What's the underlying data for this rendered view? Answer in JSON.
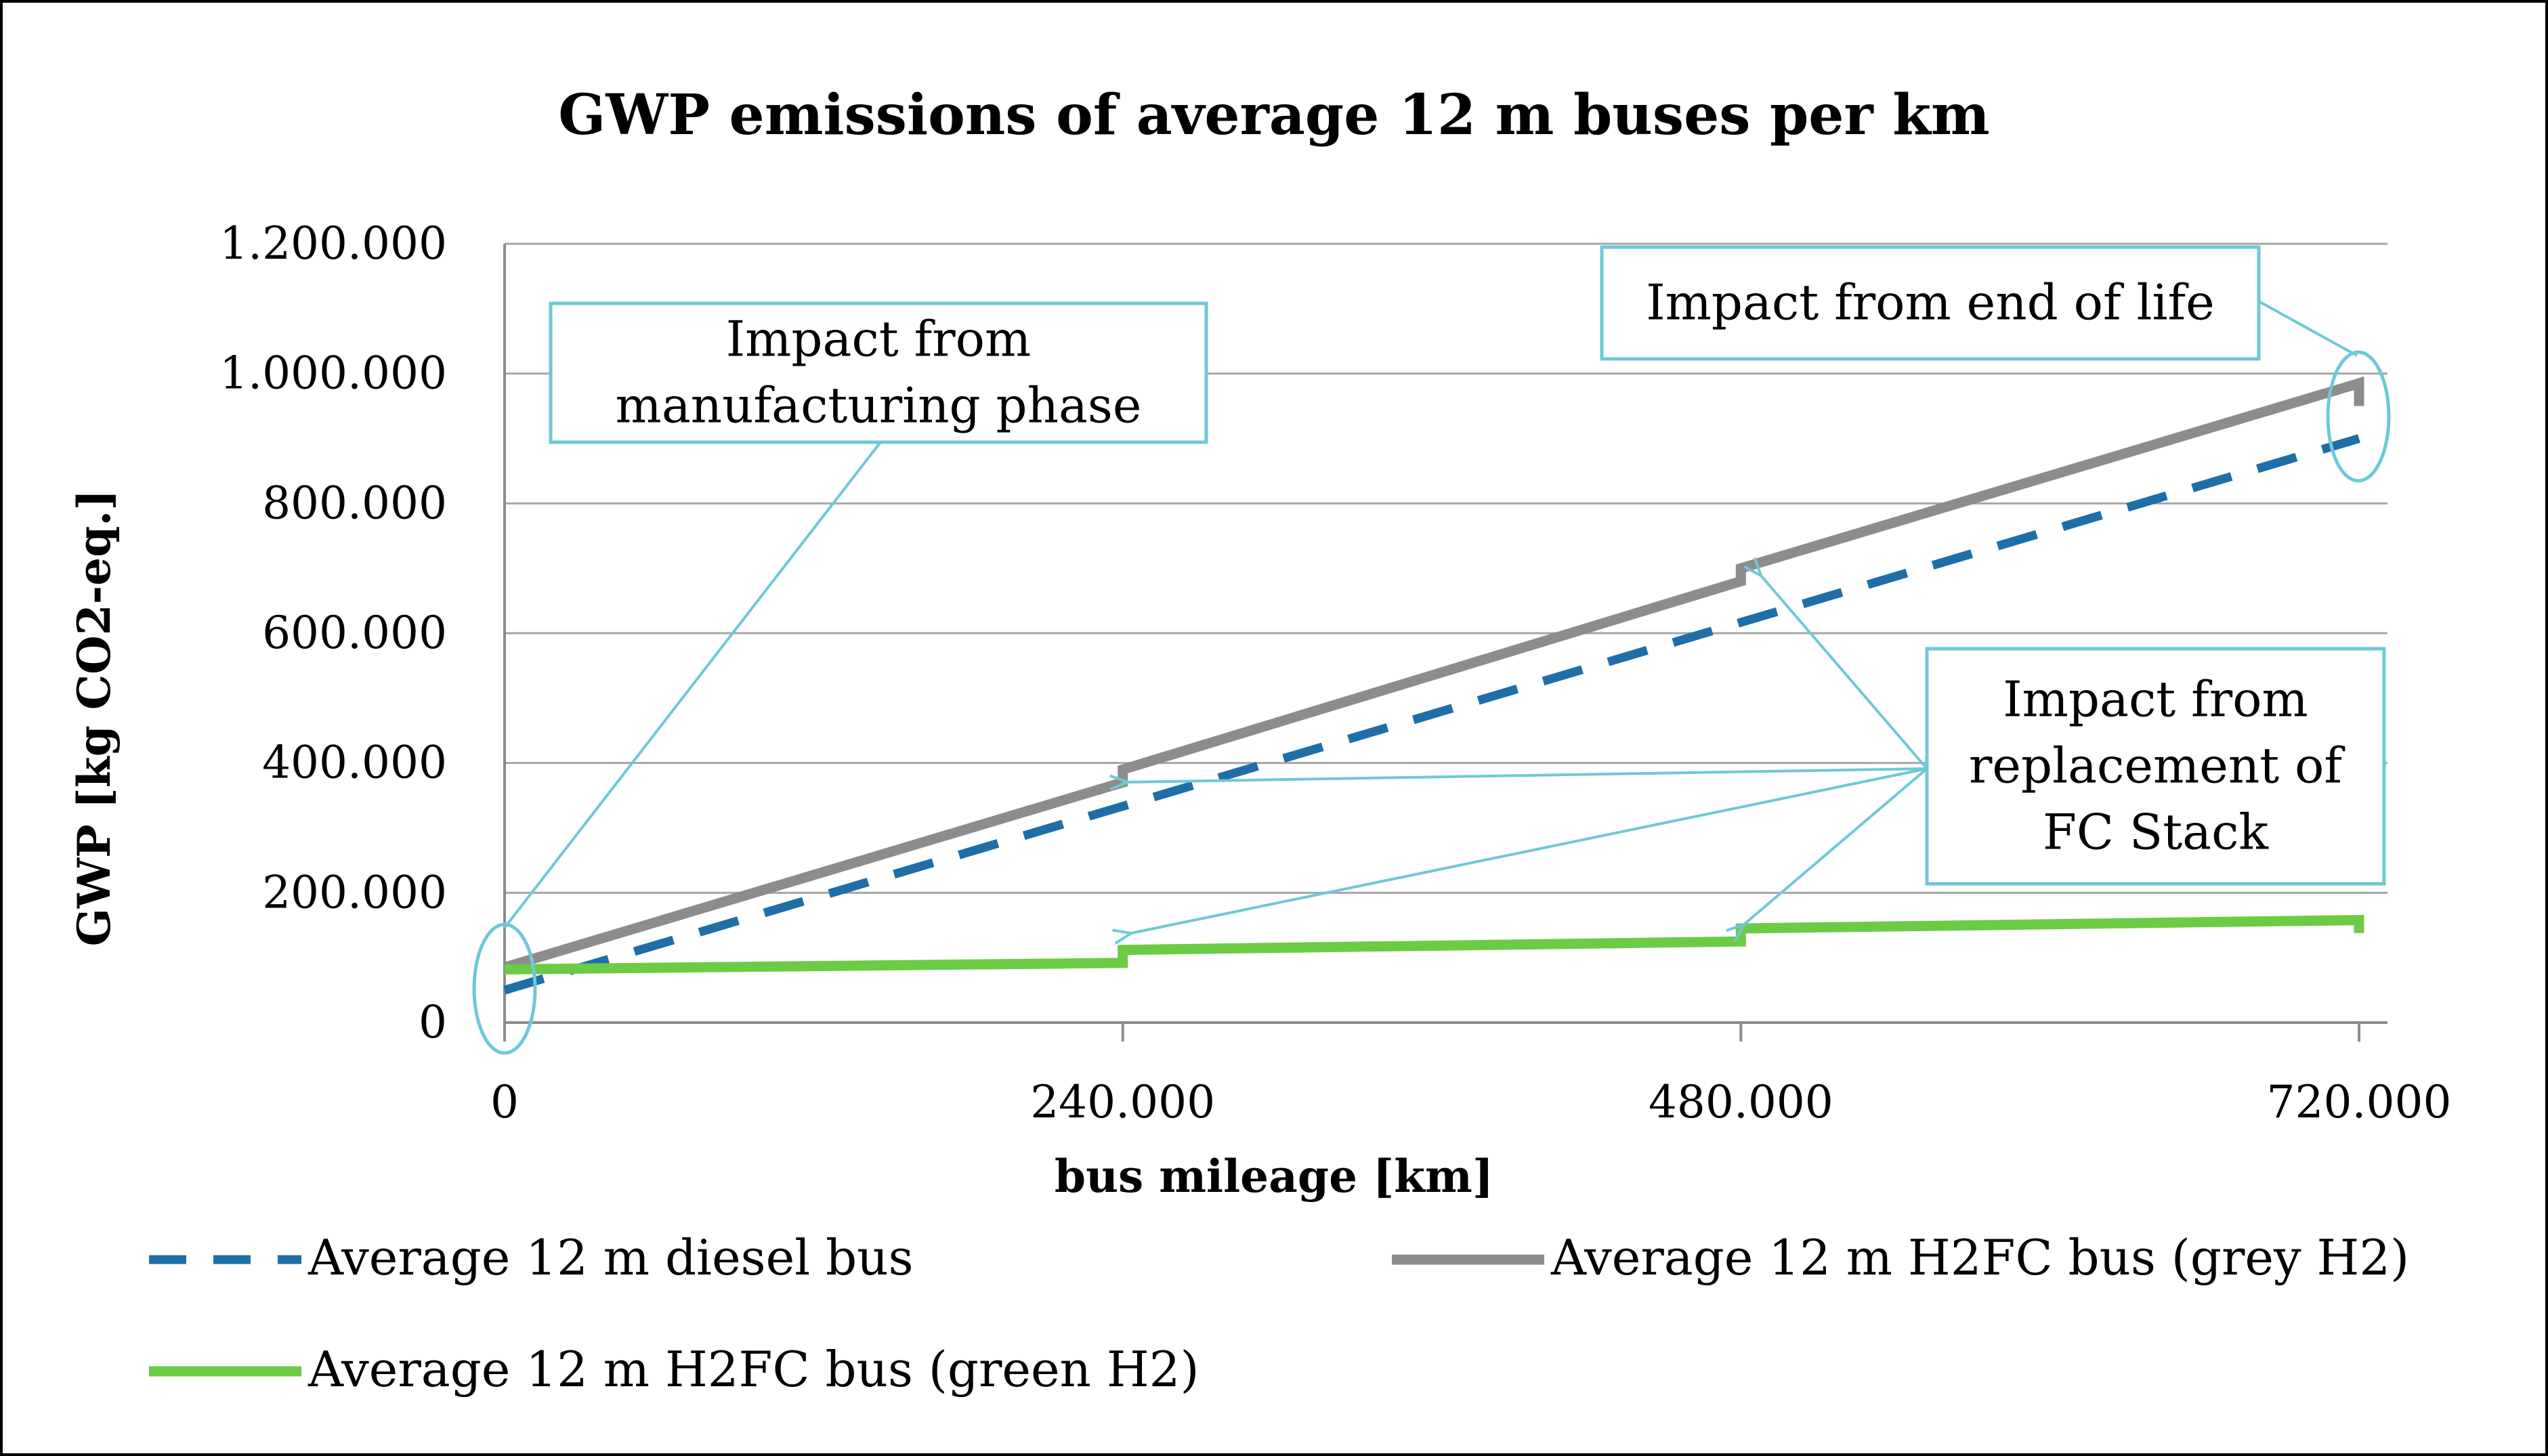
{
  "chart_data": {
    "type": "line",
    "title": "GWP emissions of average 12 m buses per km",
    "xlabel": "bus mileage [km]",
    "ylabel": "GWP [kg CO2-eq.]",
    "xlim": [
      0,
      720000
    ],
    "ylim": [
      0,
      1200000
    ],
    "x_ticks": [
      0,
      240000,
      480000,
      720000
    ],
    "x_tick_labels": [
      "0",
      "240.000",
      "480.000",
      "720.000"
    ],
    "y_ticks": [
      0,
      200000,
      400000,
      600000,
      800000,
      1000000,
      1200000
    ],
    "y_tick_labels": [
      "0",
      "200.000",
      "400.000",
      "600.000",
      "800.000",
      "1.000.000",
      "1.200.000"
    ],
    "grid": true,
    "legend_position": "bottom",
    "series": [
      {
        "name": "Average 12 m diesel bus",
        "color": "#1f6ea8",
        "style": "dashed",
        "points": [
          [
            0,
            50000
          ],
          [
            720000,
            900000
          ]
        ]
      },
      {
        "name": "Average 12 m H2FC bus (grey H2)",
        "color": "#8c8c8c",
        "style": "solid",
        "points": [
          [
            0,
            85000
          ],
          [
            240000,
            370000
          ],
          [
            240000,
            390000
          ],
          [
            480000,
            680000
          ],
          [
            480000,
            700000
          ],
          [
            720000,
            985000
          ],
          [
            720000,
            950000
          ]
        ]
      },
      {
        "name": "Average 12 m H2FC bus (green H2)",
        "color": "#6ccb45",
        "style": "solid",
        "points": [
          [
            0,
            82000
          ],
          [
            240000,
            92000
          ],
          [
            240000,
            112000
          ],
          [
            480000,
            125000
          ],
          [
            480000,
            145000
          ],
          [
            720000,
            158000
          ],
          [
            720000,
            138000
          ]
        ]
      }
    ],
    "annotations": [
      {
        "id": "manufacturing",
        "lines": [
          "Impact from",
          "manufacturing phase"
        ],
        "color": "#6fc8d6"
      },
      {
        "id": "end-of-life",
        "lines": [
          "Impact from end of life"
        ],
        "color": "#6fc8d6"
      },
      {
        "id": "replacement",
        "lines": [
          "Impact from",
          "replacement of",
          "FC Stack"
        ],
        "color": "#6fc8d6"
      }
    ]
  }
}
